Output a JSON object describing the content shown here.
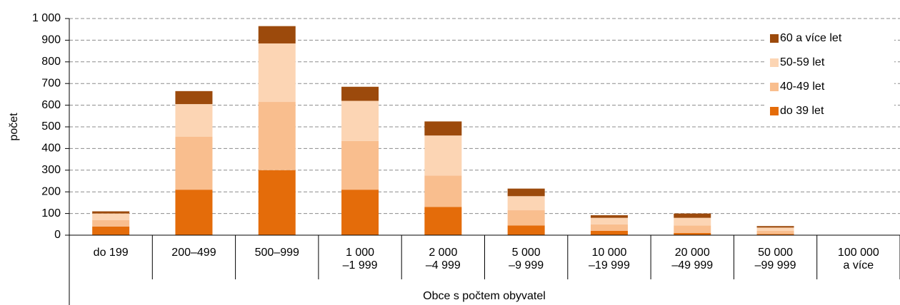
{
  "chart_data": {
    "type": "stacked_bar",
    "y_label": "počet",
    "x_label": "Obce s počtem obyvatel",
    "categories": [
      "do 199",
      "200–499",
      "500–999",
      "1 000\n–1 999",
      "2 000\n–4 999",
      "5 000\n–9 999",
      "10 000\n–19 999",
      "20 000\n–49 999",
      "50 000\n–99 999",
      "100 000\na více"
    ],
    "series": [
      {
        "name": "do 39 let",
        "color": "#e46c0a",
        "values": [
          40,
          210,
          300,
          210,
          130,
          45,
          20,
          10,
          5,
          0
        ]
      },
      {
        "name": "40-49 let",
        "color": "#f9be8e",
        "values": [
          30,
          245,
          315,
          225,
          145,
          70,
          30,
          35,
          15,
          0
        ]
      },
      {
        "name": "50-59 let",
        "color": "#fcd5b4",
        "values": [
          30,
          150,
          270,
          185,
          185,
          65,
          30,
          35,
          15,
          0
        ]
      },
      {
        "name": "60 a více let",
        "color": "#9c4a0c",
        "values": [
          10,
          60,
          80,
          65,
          65,
          35,
          12,
          20,
          7,
          0
        ]
      }
    ],
    "ylim": [
      0,
      1000
    ],
    "yticks": [
      0,
      100,
      200,
      300,
      400,
      500,
      600,
      700,
      800,
      900,
      {
        "value": 1000,
        "label": "1 000"
      }
    ],
    "grid": true,
    "legend": "top-right"
  }
}
